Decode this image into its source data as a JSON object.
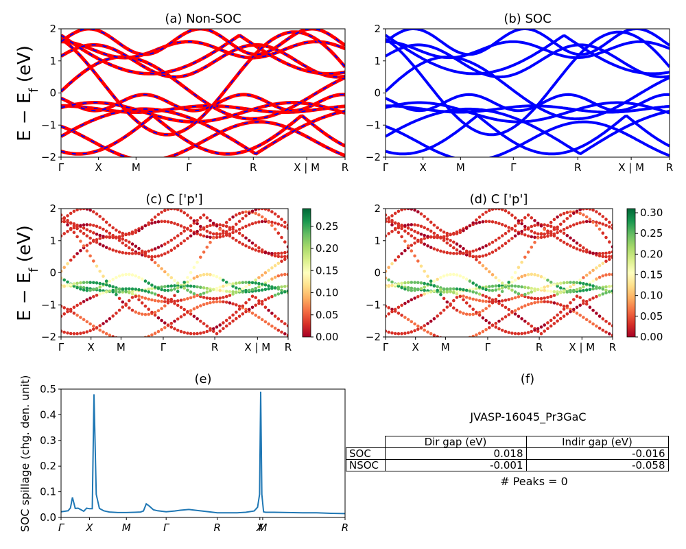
{
  "panels": {
    "a": {
      "title": "(a) Non-SOC"
    },
    "b": {
      "title": "(b) SOC"
    },
    "c": {
      "title": "(c)  C ['p']"
    },
    "d": {
      "title": "(d) C ['p']"
    },
    "e": {
      "title": "(e)"
    },
    "f": {
      "title": "(f)"
    }
  },
  "band_axis": {
    "ylabel": "E − E_f (eV)",
    "ylim": [
      -2,
      2
    ],
    "yticks": [
      "2",
      "1",
      "0",
      "−1",
      "−2"
    ],
    "kpath_labels": [
      "Γ",
      "X",
      "M",
      "Γ",
      "R",
      "X | M",
      "R"
    ]
  },
  "colorbar_c": {
    "ticks": [
      "0.25",
      "0.20",
      "0.15",
      "0.10",
      "0.05",
      "0.00"
    ],
    "range": [
      0,
      0.29
    ],
    "cmap": "RdYlGn"
  },
  "colorbar_d": {
    "ticks": [
      "0.30",
      "0.25",
      "0.20",
      "0.15",
      "0.10",
      "0.05",
      "0.00"
    ],
    "range": [
      0,
      0.31
    ],
    "cmap": "RdYlGn"
  },
  "spillage_axis": {
    "ylabel": "SOC spillage (chg. den. unit)",
    "yticks": [
      "0.5",
      "0.4",
      "0.3",
      "0.2",
      "0.1",
      "0.0"
    ],
    "ylim": [
      0,
      0.5
    ],
    "xlabels": [
      "Γ",
      "X",
      "M",
      "Γ",
      "R",
      "X",
      "M",
      "R"
    ]
  },
  "gap_table": {
    "title": "JVASP-16045_Pr3GaC",
    "col_headers": [
      "Dir gap (eV)",
      "Indir gap (eV)"
    ],
    "rows": [
      {
        "label": "SOC",
        "dir": "0.018",
        "indir": "-0.016"
      },
      {
        "label": "NSOC",
        "dir": "-0.001",
        "indir": "-0.058"
      }
    ],
    "peaks_text": "# Peaks = 0"
  },
  "colors": {
    "nonsoc": "#ff0000",
    "soc": "#0000ff",
    "spillage": "#1f77b4"
  },
  "chart_data": [
    {
      "type": "line",
      "title": "(e)",
      "ylabel": "SOC spillage (chg. den. unit)",
      "ylim": [
        0,
        0.5
      ],
      "x_range": [
        0,
        100
      ],
      "x_ticks": [
        0,
        10,
        23,
        37,
        55,
        70,
        71,
        100
      ],
      "x_tick_labels": [
        "Γ",
        "X",
        "M",
        "Γ",
        "R",
        "X",
        "M",
        "R"
      ],
      "series": [
        {
          "x": [
            0,
            2.5,
            3.3,
            4,
            5,
            6,
            7,
            8,
            9,
            10,
            11,
            11.6,
            12.4,
            13.5,
            15,
            17,
            20,
            23,
            26,
            28,
            29,
            30,
            31,
            32.5,
            34,
            37,
            40,
            42,
            45,
            48,
            52,
            55,
            58,
            62,
            65,
            68,
            69.2,
            69.9,
            70.3,
            70.7,
            71.3,
            72,
            75,
            80,
            85,
            90,
            95,
            100
          ],
          "y": [
            0.022,
            0.026,
            0.037,
            0.078,
            0.035,
            0.036,
            0.03,
            0.024,
            0.036,
            0.034,
            0.034,
            0.48,
            0.09,
            0.035,
            0.026,
            0.021,
            0.019,
            0.019,
            0.02,
            0.021,
            0.025,
            0.053,
            0.045,
            0.03,
            0.026,
            0.022,
            0.025,
            0.028,
            0.031,
            0.027,
            0.022,
            0.018,
            0.018,
            0.018,
            0.02,
            0.025,
            0.04,
            0.09,
            0.49,
            0.09,
            0.022,
            0.02,
            0.02,
            0.019,
            0.018,
            0.018,
            0.016,
            0.015
          ]
        }
      ]
    },
    {
      "type": "table",
      "title": "JVASP-16045_Pr3GaC",
      "columns": [
        "",
        "Dir gap (eV)",
        "Indir gap (eV)"
      ],
      "rows": [
        [
          "SOC",
          "0.018",
          "-0.016"
        ],
        [
          "NSOC",
          "-0.001",
          "-0.058"
        ]
      ]
    }
  ]
}
